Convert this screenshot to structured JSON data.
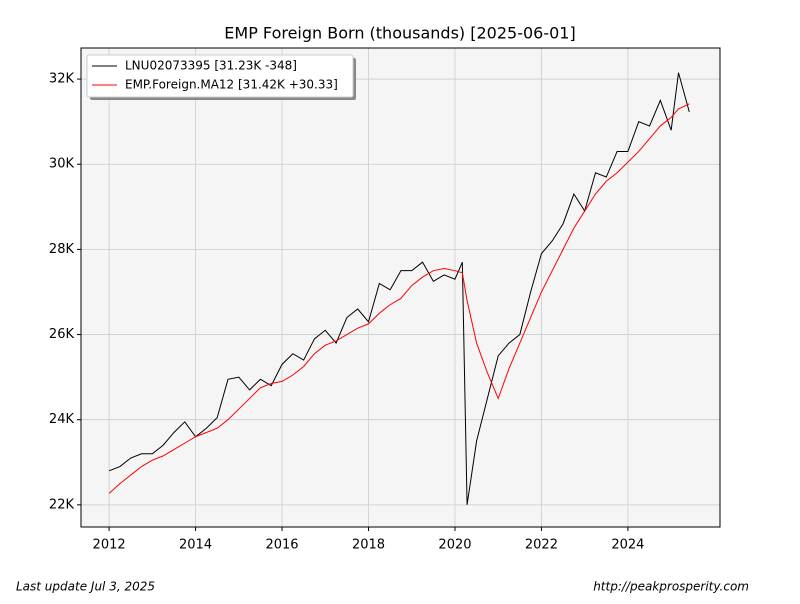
{
  "chart_data": {
    "type": "line",
    "title": "EMP Foreign Born (thousands) [2025-06-01]",
    "x": [
      2012.0,
      2012.25,
      2012.5,
      2012.75,
      2013.0,
      2013.25,
      2013.5,
      2013.75,
      2014.0,
      2014.25,
      2014.5,
      2014.75,
      2015.0,
      2015.25,
      2015.5,
      2015.75,
      2016.0,
      2016.25,
      2016.5,
      2016.75,
      2017.0,
      2017.25,
      2017.5,
      2017.75,
      2018.0,
      2018.25,
      2018.5,
      2018.75,
      2019.0,
      2019.25,
      2019.5,
      2019.75,
      2020.0,
      2020.17,
      2020.28,
      2020.5,
      2020.75,
      2021.0,
      2021.25,
      2021.5,
      2021.75,
      2022.0,
      2022.25,
      2022.5,
      2022.75,
      2023.0,
      2023.25,
      2023.5,
      2023.75,
      2024.0,
      2024.25,
      2024.5,
      2024.75,
      2025.0,
      2025.17,
      2025.42
    ],
    "series": [
      {
        "name": "LNU02073395 [31.23K -348]",
        "color": "#000000",
        "values": [
          22800,
          22900,
          23100,
          23200,
          23200,
          23400,
          23700,
          23950,
          23600,
          23800,
          24050,
          24950,
          25000,
          24700,
          24950,
          24800,
          25300,
          25550,
          25400,
          25900,
          26100,
          25800,
          26400,
          26600,
          26300,
          27200,
          27050,
          27500,
          27500,
          27700,
          27250,
          27400,
          27300,
          27700,
          22000,
          23500,
          24500,
          25500,
          25800,
          26000,
          27000,
          27900,
          28200,
          28600,
          29300,
          28900,
          29800,
          29700,
          30300,
          30300,
          31000,
          30900,
          31500,
          30800,
          32150,
          31230
        ]
      },
      {
        "name": "EMP.Foreign.MA12 [31.42K +30.33]",
        "color": "#ff0000",
        "values": [
          22270,
          22500,
          22700,
          22900,
          23050,
          23150,
          23300,
          23450,
          23600,
          23700,
          23800,
          24000,
          24250,
          24500,
          24750,
          24850,
          24900,
          25050,
          25250,
          25550,
          25750,
          25850,
          26000,
          26150,
          26250,
          26500,
          26700,
          26850,
          27150,
          27350,
          27500,
          27550,
          27500,
          27450,
          26800,
          25800,
          25100,
          24500,
          25200,
          25800,
          26400,
          27000,
          27500,
          28000,
          28500,
          28900,
          29300,
          29600,
          29800,
          30050,
          30300,
          30600,
          30900,
          31100,
          31300,
          31420
        ]
      }
    ],
    "xlim": [
      2011.35,
      2026.13
    ],
    "xticks": [
      2012,
      2014,
      2016,
      2018,
      2020,
      2022,
      2024
    ],
    "ylim": [
      21480,
      32730
    ],
    "yticks": [
      {
        "value": 22000,
        "label": "22K"
      },
      {
        "value": 24000,
        "label": "24K"
      },
      {
        "value": 26000,
        "label": "26K"
      },
      {
        "value": 28000,
        "label": "28K"
      },
      {
        "value": 30000,
        "label": "30K"
      },
      {
        "value": 32000,
        "label": "32K"
      }
    ],
    "grid": true,
    "legend": "upper left",
    "footer_left": "Last update Jul  3, 2025",
    "footer_right": "http://peakprosperity.com"
  }
}
